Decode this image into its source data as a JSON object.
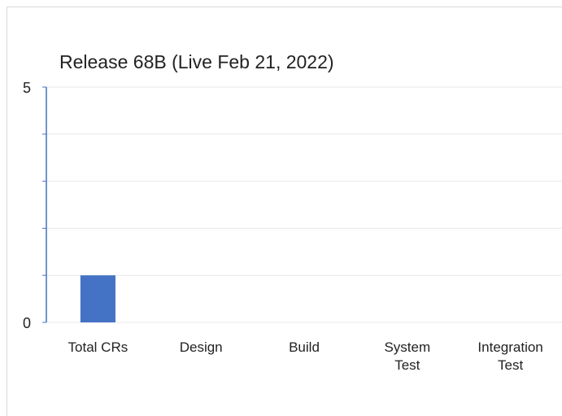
{
  "chart_data": {
    "type": "bar",
    "title": "Release 68B (Live Feb 21, 2022)",
    "categories": [
      "Total CRs",
      "Design",
      "Build",
      "System Test",
      "Integration Test"
    ],
    "values": [
      1,
      0,
      0,
      0,
      0
    ],
    "color": "#4472c4",
    "ylim": [
      0,
      5
    ],
    "yticks": [
      0,
      5
    ],
    "minor_yticks": [
      1,
      2,
      3,
      4
    ],
    "grid": true
  }
}
